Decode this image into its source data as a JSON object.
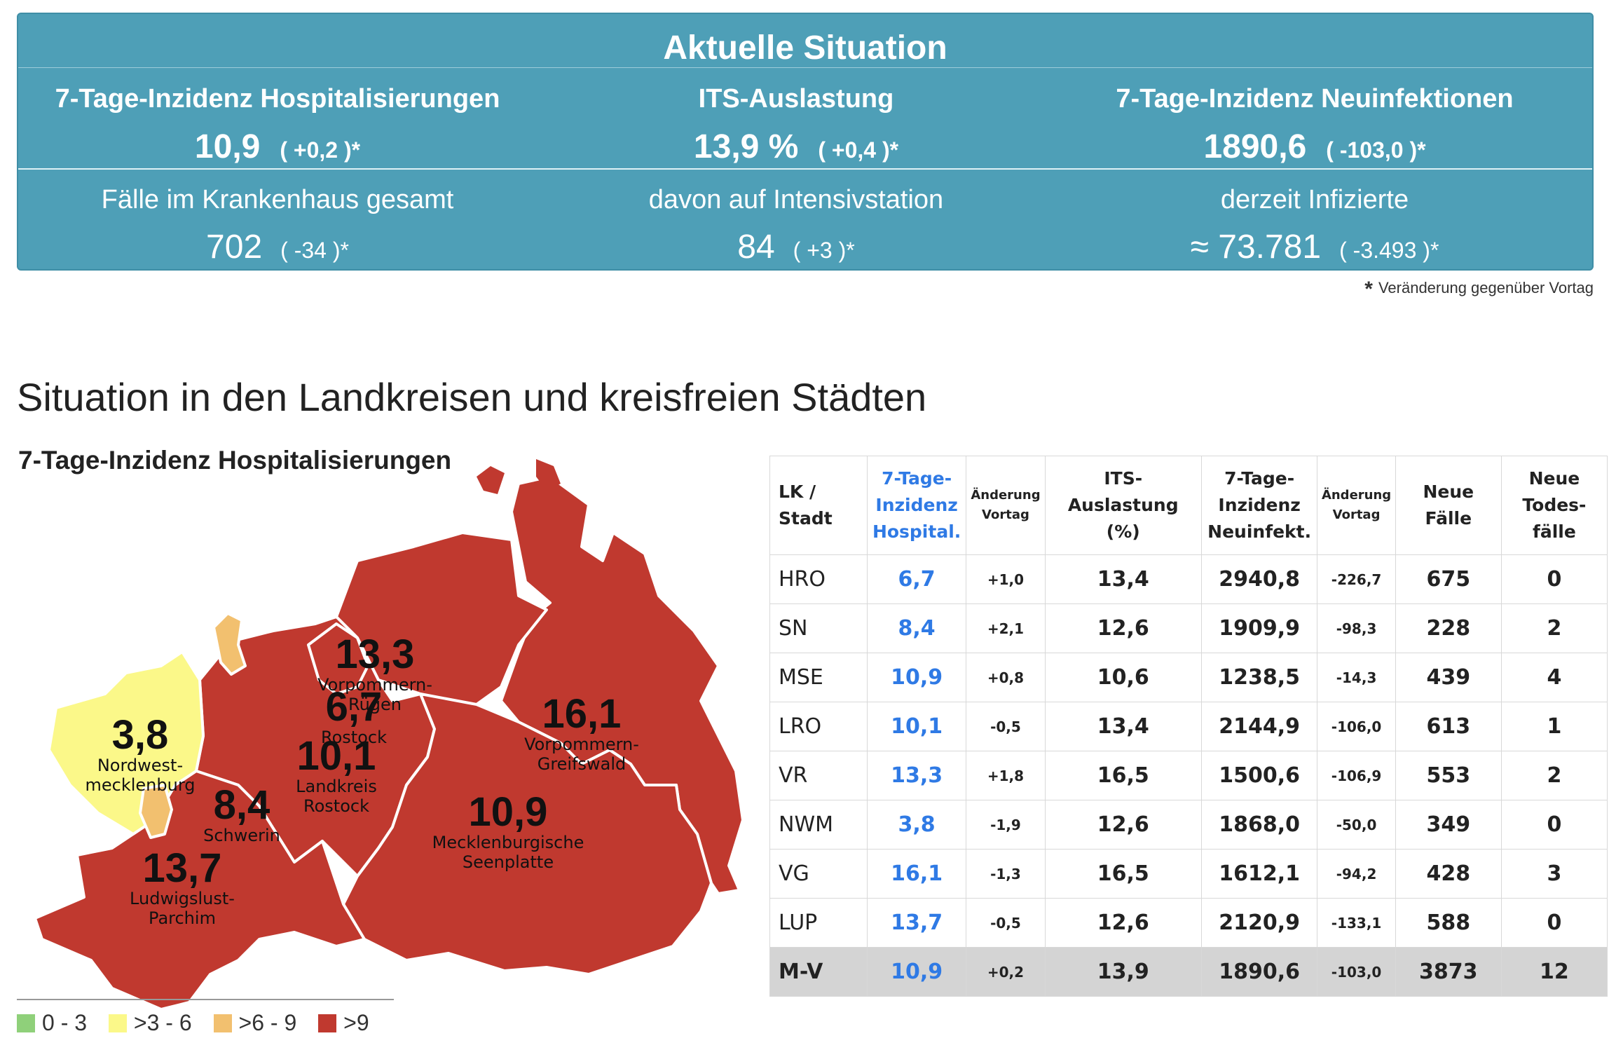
{
  "panel": {
    "title": "Aktuelle Situation",
    "indicators": [
      {
        "label": "7-Tage-Inzidenz Hospitalisierungen",
        "value": "10,9",
        "delta": "( +0,2 )*"
      },
      {
        "label": "ITS-Auslastung",
        "value": "13,9 %",
        "delta": "( +0,4 )*"
      },
      {
        "label": "7-Tage-Inzidenz Neuinfektionen",
        "value": "1890,6",
        "delta": "( -103,0 )*"
      }
    ],
    "cases": [
      {
        "label": "Fälle im Krankenhaus gesamt",
        "value": "702",
        "delta": "( -34 )*"
      },
      {
        "label": "davon auf Intensivstation",
        "value": "84",
        "delta": "( +3 )*"
      },
      {
        "label": "derzeit Infizierte",
        "value": "≈ 73.781",
        "delta": "( -3.493 )*"
      }
    ],
    "footnote_star": "*",
    "footnote": "Veränderung gegenüber Vortag"
  },
  "section_title": "Situation in den Landkreisen und kreisfreien Städten",
  "map": {
    "title": "7-Tage-Inzidenz Hospitalisierungen",
    "regions": [
      {
        "num": "13,3",
        "name": "Vorpommern-\nRügen"
      },
      {
        "num": "6,7",
        "name": "Rostock"
      },
      {
        "num": "16,1",
        "name": "Vorpommern-\nGreifswald"
      },
      {
        "num": "10,1",
        "name": "Landkreis\nRostock"
      },
      {
        "num": "3,8",
        "name": "Nordwest-\nmecklenburg"
      },
      {
        "num": "8,4",
        "name": "Schwerin"
      },
      {
        "num": "10,9",
        "name": "Mecklenburgische\nSeenplatte"
      },
      {
        "num": "13,7",
        "name": "Ludwigslust-\nParchim"
      }
    ],
    "colors": {
      "red": "#c0392f",
      "yellow": "#fbf889",
      "orange": "#f2c06f",
      "green": "#8fd07a"
    },
    "legend": [
      {
        "label": "0 - 3",
        "color": "#8fd07a"
      },
      {
        "label": ">3 - 6",
        "color": "#fbf889"
      },
      {
        "label": ">6 - 9",
        "color": "#f2c06f"
      },
      {
        "label": ">9",
        "color": "#c0392f"
      }
    ]
  },
  "table": {
    "headers": {
      "lk": "LK /\nStadt",
      "hosp": "7-Tage-\nInzidenz\nHospital.",
      "chg1": "Änderung\nVortag",
      "its": "ITS-\nAuslastung\n(%)",
      "neu": "7-Tage-\nInzidenz\nNeuinfekt.",
      "chg2": "Änderung\nVortag",
      "faelle": "Neue\nFälle",
      "tode": "Neue\nTodes-\nfälle"
    },
    "rows": [
      [
        "HRO",
        "6,7",
        "+1,0",
        "13,4",
        "2940,8",
        "-226,7",
        "675",
        "0"
      ],
      [
        "SN",
        "8,4",
        "+2,1",
        "12,6",
        "1909,9",
        "-98,3",
        "228",
        "2"
      ],
      [
        "MSE",
        "10,9",
        "+0,8",
        "10,6",
        "1238,5",
        "-14,3",
        "439",
        "4"
      ],
      [
        "LRO",
        "10,1",
        "-0,5",
        "13,4",
        "2144,9",
        "-106,0",
        "613",
        "1"
      ],
      [
        "VR",
        "13,3",
        "+1,8",
        "16,5",
        "1500,6",
        "-106,9",
        "553",
        "2"
      ],
      [
        "NWM",
        "3,8",
        "-1,9",
        "12,6",
        "1868,0",
        "-50,0",
        "349",
        "0"
      ],
      [
        "VG",
        "16,1",
        "-1,3",
        "16,5",
        "1612,1",
        "-94,2",
        "428",
        "3"
      ],
      [
        "LUP",
        "13,7",
        "-0,5",
        "12,6",
        "2120,9",
        "-133,1",
        "588",
        "0"
      ]
    ],
    "total": [
      "M-V",
      "10,9",
      "+0,2",
      "13,9",
      "1890,6",
      "-103,0",
      "3873",
      "12"
    ]
  }
}
